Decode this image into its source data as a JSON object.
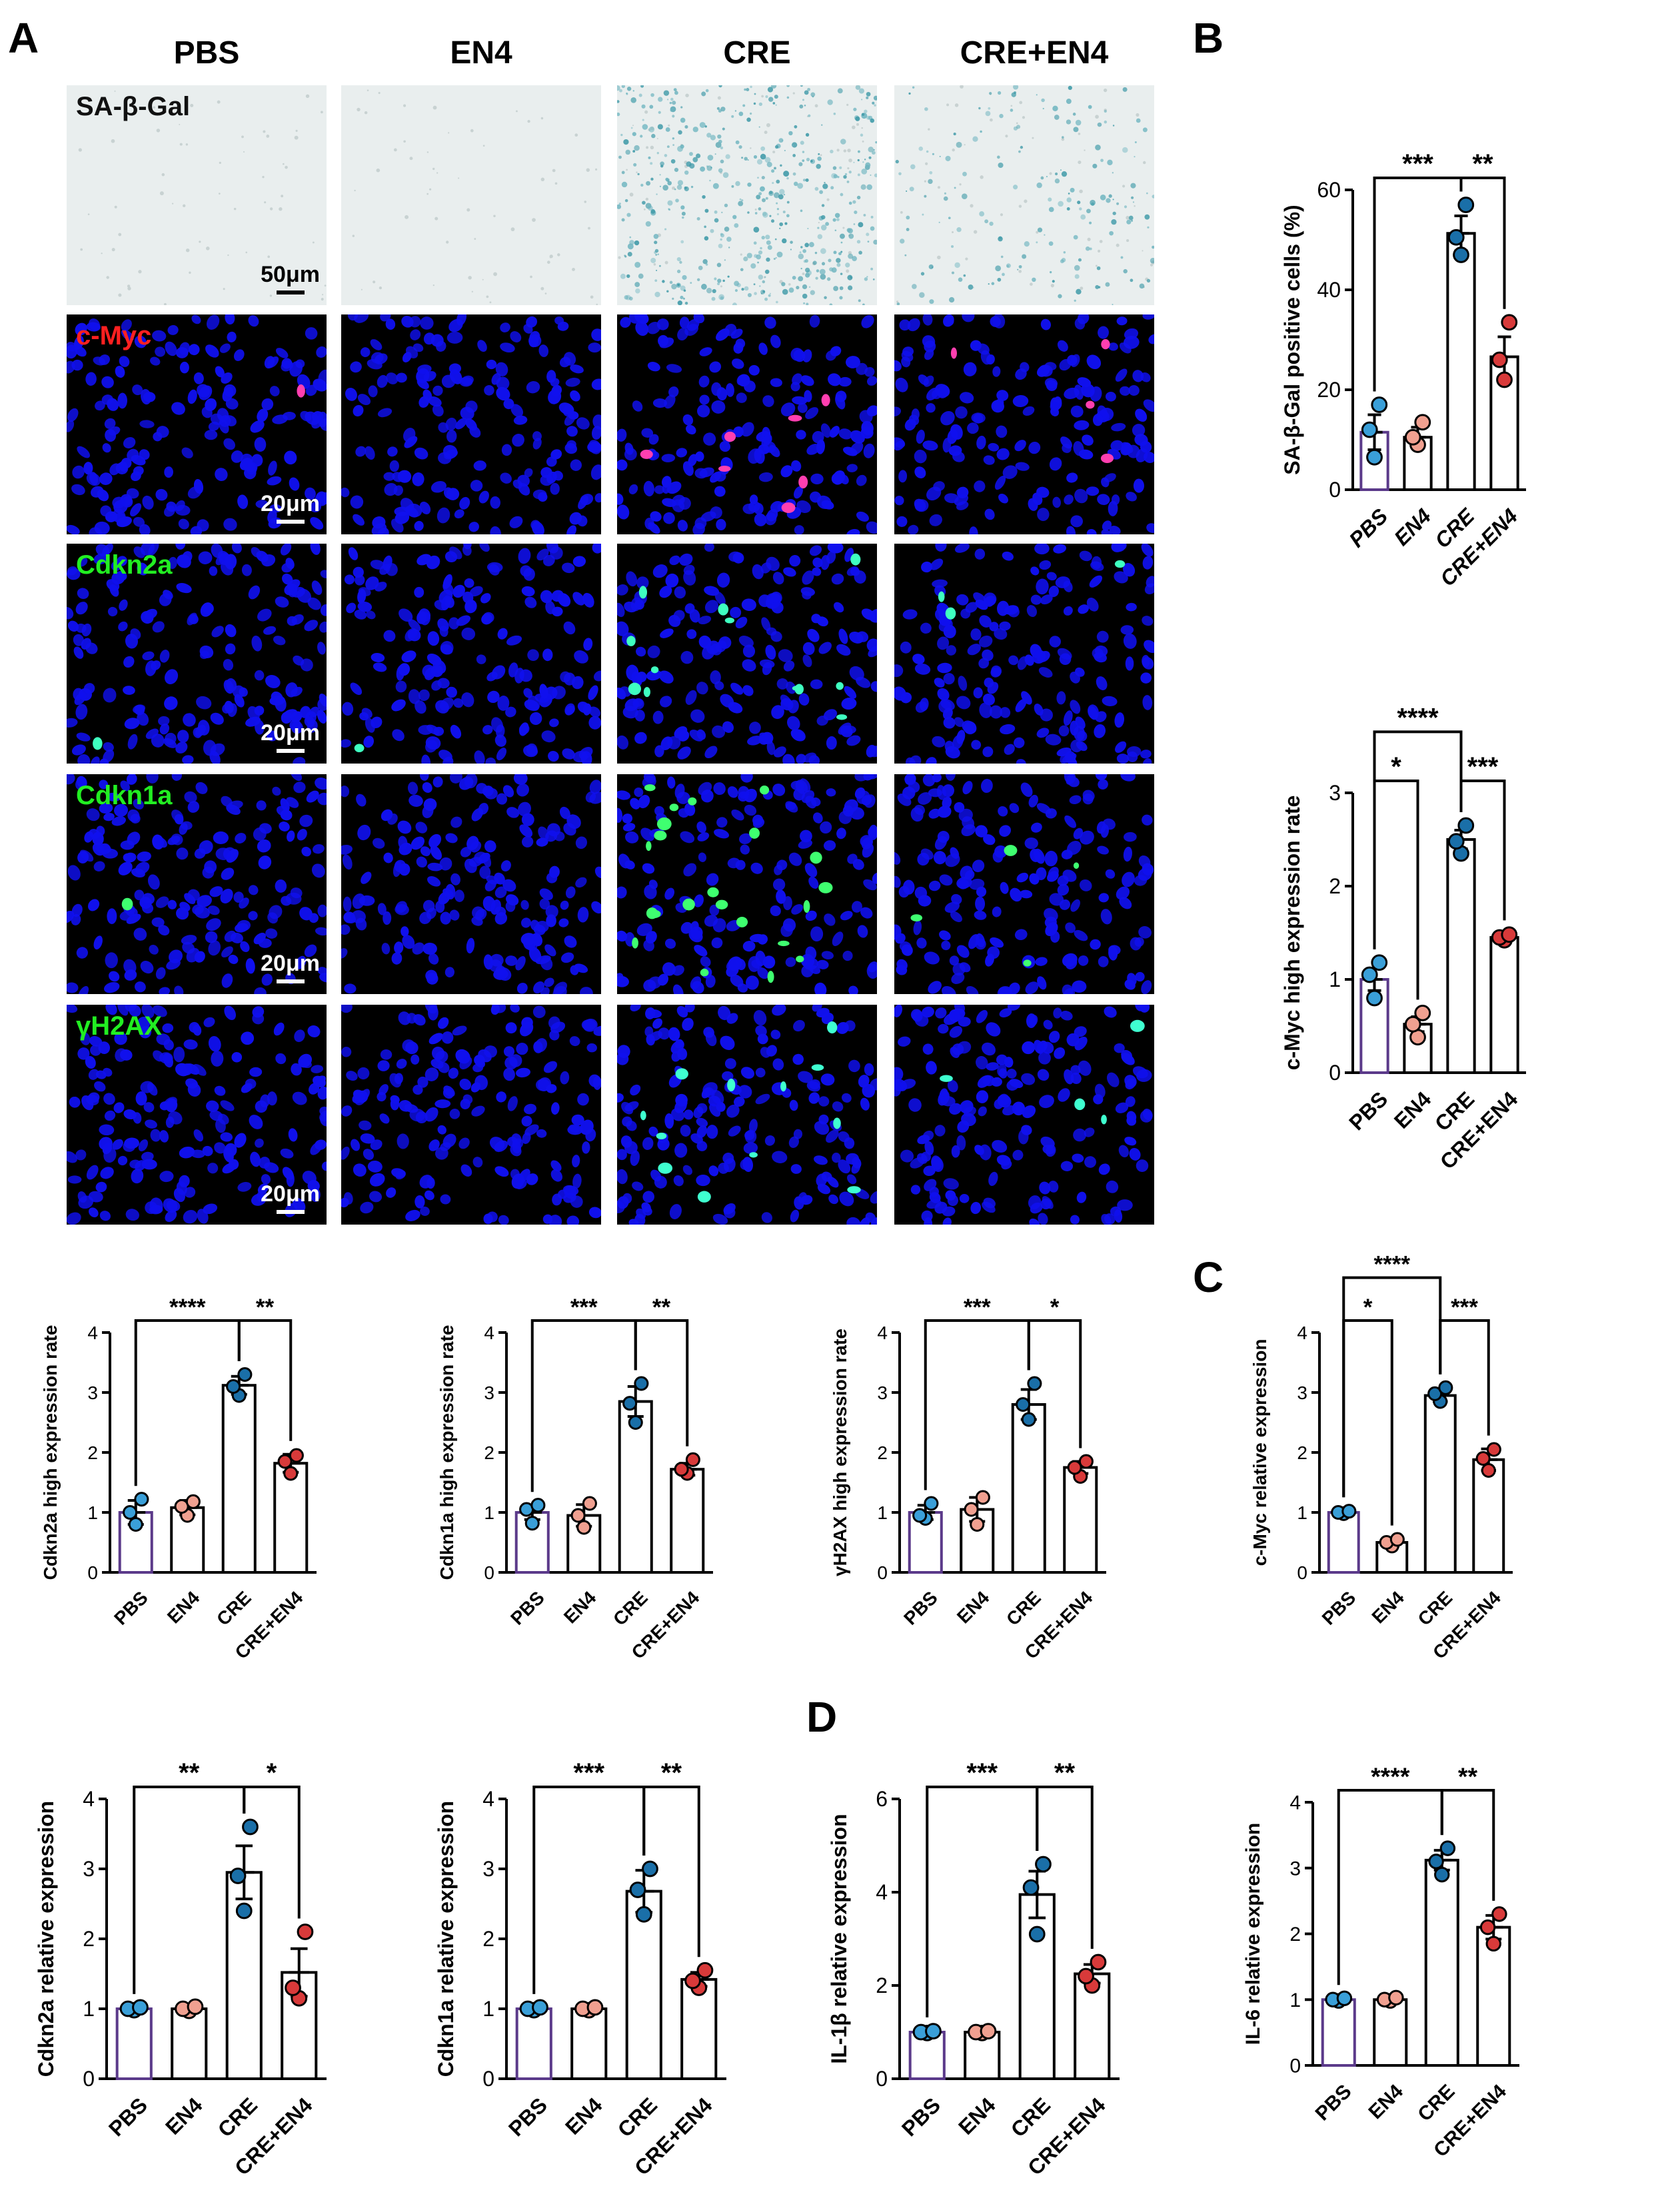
{
  "panels": {
    "A": "A",
    "B": "B",
    "C": "C",
    "D": "D"
  },
  "columns": [
    "PBS",
    "EN4",
    "CRE",
    "CRE+EN4"
  ],
  "rows": [
    {
      "label": "SA-β-Gal",
      "label_color": "#111111",
      "type": "brightfield",
      "scale": "50μm"
    },
    {
      "label": "c-Myc",
      "label_color": "#ff2020",
      "type": "fluor",
      "scale": "20μm",
      "signal_color": "#ff3fb0"
    },
    {
      "label": "Cdkn2a",
      "label_color": "#22ee22",
      "type": "fluor",
      "scale": "20μm",
      "signal_color": "#3fffc0"
    },
    {
      "label": "Cdkn1a",
      "label_color": "#22ee22",
      "type": "fluor",
      "scale": "20μm",
      "signal_color": "#3fff70"
    },
    {
      "label": "γH2AX",
      "label_color": "#22ee22",
      "type": "fluor",
      "scale": "20μm",
      "signal_color": "#3fffd0"
    }
  ],
  "colors": {
    "PBS": "#3a9fd8",
    "EN4": "#f0a090",
    "CRE": "#1a6fa8",
    "CRE+EN4": "#d83a3a",
    "bar_pbs": "#5b3a8a",
    "nuclei": "#1010ee"
  },
  "chart_data": [
    {
      "id": "sagal",
      "type": "bar",
      "categories": [
        "PBS",
        "EN4",
        "CRE",
        "CRE+EN4"
      ],
      "values": [
        11.5,
        10.5,
        51.3,
        26.6
      ],
      "sem": [
        3.5,
        2,
        3.5,
        4
      ],
      "points": [
        [
          6.5,
          12,
          17
        ],
        [
          9,
          10.5,
          13.5
        ],
        [
          47,
          50.5,
          57
        ],
        [
          22,
          26,
          33.5
        ]
      ],
      "ylabel": "SA-β-Gal positive cells (%)",
      "ylim": [
        0,
        60
      ],
      "yticks": [
        0,
        20,
        40,
        60
      ],
      "sig": [
        {
          "from": 0,
          "to": 2,
          "label": "***",
          "level": 0
        },
        {
          "from": 2,
          "to": 3,
          "label": "**",
          "level": 0
        }
      ],
      "italic": true
    },
    {
      "id": "mycB",
      "type": "bar",
      "categories": [
        "PBS",
        "EN4",
        "CRE",
        "CRE+EN4"
      ],
      "values": [
        1.0,
        0.52,
        2.5,
        1.45
      ],
      "sem": [
        0.12,
        0.08,
        0.1,
        0.04
      ],
      "points": [
        [
          0.8,
          1.05,
          1.18
        ],
        [
          0.38,
          0.52,
          0.64
        ],
        [
          2.35,
          2.48,
          2.65
        ],
        [
          1.42,
          1.45,
          1.48
        ]
      ],
      "ylabel": "c-Myc high expression rate",
      "ylim": [
        0,
        3
      ],
      "yticks": [
        0,
        1,
        2,
        3
      ],
      "sig": [
        {
          "from": 0,
          "to": 1,
          "label": "*",
          "level": 0
        },
        {
          "from": 2,
          "to": 3,
          "label": "***",
          "level": 0
        },
        {
          "from": 0,
          "to": 2,
          "label": "****",
          "level": 1
        }
      ],
      "italic": false
    },
    {
      "id": "cdkn2aA",
      "type": "bar",
      "categories": [
        "PBS",
        "EN4",
        "CRE",
        "CRE+EN4"
      ],
      "values": [
        1.0,
        1.08,
        3.12,
        1.82
      ],
      "sem": [
        0.2,
        0.12,
        0.15,
        0.15
      ],
      "points": [
        [
          0.8,
          1.0,
          1.22
        ],
        [
          0.95,
          1.1,
          1.18
        ],
        [
          2.95,
          3.1,
          3.3
        ],
        [
          1.65,
          1.85,
          1.95
        ]
      ],
      "ylabel": "Cdkn2a high expression rate",
      "ylim": [
        0,
        4
      ],
      "yticks": [
        0,
        1,
        2,
        3,
        4
      ],
      "sig": [
        {
          "from": 0,
          "to": 2,
          "label": "****",
          "level": 0
        },
        {
          "from": 2,
          "to": 3,
          "label": "**",
          "level": 0
        }
      ],
      "italic": false
    },
    {
      "id": "cdkn1aA",
      "type": "bar",
      "categories": [
        "PBS",
        "EN4",
        "CRE",
        "CRE+EN4"
      ],
      "values": [
        1.0,
        0.95,
        2.85,
        1.72
      ],
      "sem": [
        0.12,
        0.18,
        0.25,
        0.1
      ],
      "points": [
        [
          0.82,
          1.05,
          1.12
        ],
        [
          0.75,
          0.95,
          1.15
        ],
        [
          2.5,
          2.82,
          3.15
        ],
        [
          1.65,
          1.72,
          1.88
        ]
      ],
      "ylabel": "Cdkn1a high expression rate",
      "ylim": [
        0,
        4
      ],
      "yticks": [
        0,
        1,
        2,
        3,
        4
      ],
      "sig": [
        {
          "from": 0,
          "to": 2,
          "label": "***",
          "level": 0
        },
        {
          "from": 2,
          "to": 3,
          "label": "**",
          "level": 0
        }
      ],
      "italic": false
    },
    {
      "id": "h2axA",
      "type": "bar",
      "categories": [
        "PBS",
        "EN4",
        "CRE",
        "CRE+EN4"
      ],
      "values": [
        1.0,
        1.05,
        2.8,
        1.75
      ],
      "sem": [
        0.12,
        0.2,
        0.25,
        0.1
      ],
      "points": [
        [
          0.9,
          0.95,
          1.15
        ],
        [
          0.8,
          1.05,
          1.25
        ],
        [
          2.55,
          2.8,
          3.15
        ],
        [
          1.6,
          1.75,
          1.85
        ]
      ],
      "ylabel": "γH2AX high expression rate",
      "ylim": [
        0,
        4
      ],
      "yticks": [
        0,
        1,
        2,
        3,
        4
      ],
      "sig": [
        {
          "from": 0,
          "to": 2,
          "label": "***",
          "level": 0
        },
        {
          "from": 2,
          "to": 3,
          "label": "*",
          "level": 0
        }
      ],
      "italic": false
    },
    {
      "id": "mycC",
      "type": "bar",
      "categories": [
        "PBS",
        "EN4",
        "CRE",
        "CRE+EN4"
      ],
      "values": [
        1.0,
        0.5,
        2.95,
        1.88
      ],
      "sem": [
        0.03,
        0.06,
        0.1,
        0.18
      ],
      "points": [
        [
          0.98,
          1.0,
          1.02
        ],
        [
          0.44,
          0.5,
          0.55
        ],
        [
          2.85,
          2.98,
          3.08
        ],
        [
          1.7,
          1.9,
          2.05
        ]
      ],
      "ylabel": "c-Myc relative expression",
      "ylim": [
        0,
        4
      ],
      "yticks": [
        0,
        1,
        2,
        3,
        4
      ],
      "sig": [
        {
          "from": 0,
          "to": 1,
          "label": "*",
          "level": 0
        },
        {
          "from": 2,
          "to": 3,
          "label": "***",
          "level": 0
        },
        {
          "from": 0,
          "to": 2,
          "label": "****",
          "level": 1
        }
      ],
      "italic": false
    },
    {
      "id": "cdkn2aD",
      "type": "bar",
      "categories": [
        "PBS",
        "EN4",
        "CRE",
        "CRE+EN4"
      ],
      "values": [
        1.0,
        1.0,
        2.95,
        1.52
      ],
      "sem": [
        0.02,
        0.03,
        0.38,
        0.34
      ],
      "points": [
        [
          0.98,
          1.0,
          1.02
        ],
        [
          0.97,
          1.0,
          1.03
        ],
        [
          2.4,
          2.9,
          3.6
        ],
        [
          1.15,
          1.3,
          2.1
        ]
      ],
      "ylabel": "Cdkn2a relative expression",
      "ylim": [
        0,
        4
      ],
      "yticks": [
        0,
        1,
        2,
        3,
        4
      ],
      "sig": [
        {
          "from": 0,
          "to": 2,
          "label": "**",
          "level": 0
        },
        {
          "from": 2,
          "to": 3,
          "label": "*",
          "level": 0
        }
      ],
      "italic": false
    },
    {
      "id": "cdkn1aD",
      "type": "bar",
      "categories": [
        "PBS",
        "EN4",
        "CRE",
        "CRE+EN4"
      ],
      "values": [
        1.0,
        1.0,
        2.68,
        1.42
      ],
      "sem": [
        0.02,
        0.02,
        0.3,
        0.1
      ],
      "points": [
        [
          0.98,
          1.0,
          1.02
        ],
        [
          0.98,
          1.0,
          1.02
        ],
        [
          2.35,
          2.7,
          3.0
        ],
        [
          1.3,
          1.4,
          1.55
        ]
      ],
      "ylabel": "Cdkn1a relative expression",
      "ylim": [
        0,
        4
      ],
      "yticks": [
        0,
        1,
        2,
        3,
        4
      ],
      "sig": [
        {
          "from": 0,
          "to": 2,
          "label": "***",
          "level": 0
        },
        {
          "from": 2,
          "to": 3,
          "label": "**",
          "level": 0
        }
      ],
      "italic": false
    },
    {
      "id": "il1b",
      "type": "bar",
      "categories": [
        "PBS",
        "EN4",
        "CRE",
        "CRE+EN4"
      ],
      "values": [
        1.0,
        1.0,
        3.95,
        2.25
      ],
      "sem": [
        0.03,
        0.03,
        0.5,
        0.2
      ],
      "points": [
        [
          0.98,
          1.0,
          1.02
        ],
        [
          0.98,
          1.0,
          1.02
        ],
        [
          3.1,
          4.1,
          4.6
        ],
        [
          2.0,
          2.2,
          2.5
        ]
      ],
      "ylabel": "IL-1β relative expression",
      "ylim": [
        0,
        6
      ],
      "yticks": [
        0,
        2,
        4,
        6
      ],
      "sig": [
        {
          "from": 0,
          "to": 2,
          "label": "***",
          "level": 0
        },
        {
          "from": 2,
          "to": 3,
          "label": "**",
          "level": 0
        }
      ],
      "italic": false
    },
    {
      "id": "il6",
      "type": "bar",
      "categories": [
        "PBS",
        "EN4",
        "CRE",
        "CRE+EN4"
      ],
      "values": [
        1.0,
        1.0,
        3.12,
        2.1
      ],
      "sem": [
        0.02,
        0.03,
        0.15,
        0.18
      ],
      "points": [
        [
          0.98,
          1.0,
          1.02
        ],
        [
          0.98,
          1.0,
          1.03
        ],
        [
          2.9,
          3.1,
          3.3
        ],
        [
          1.85,
          2.1,
          2.3
        ]
      ],
      "ylabel": "IL-6 relative expression",
      "ylim": [
        0,
        4
      ],
      "yticks": [
        0,
        1,
        2,
        3,
        4
      ],
      "sig": [
        {
          "from": 0,
          "to": 2,
          "label": "****",
          "level": 0
        },
        {
          "from": 2,
          "to": 3,
          "label": "**",
          "level": 0
        }
      ],
      "italic": false
    }
  ]
}
